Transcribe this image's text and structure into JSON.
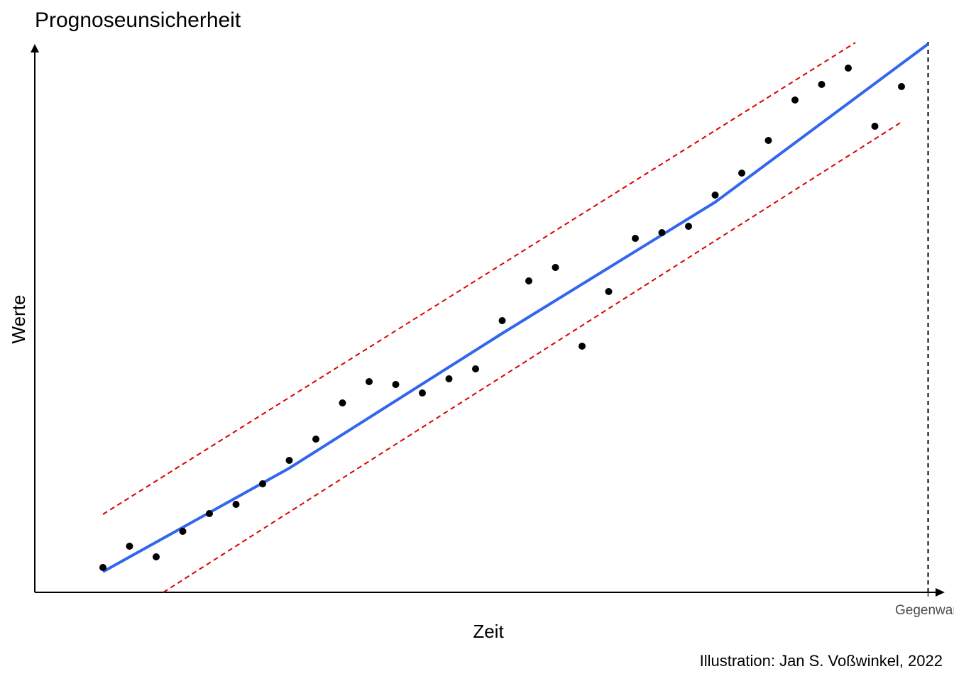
{
  "chart_data": {
    "type": "scatter",
    "title": "Prognoseunsicherheit",
    "x_label": "Zeit",
    "y_label": "Werte",
    "caption": "Illustration: Jan S. Voßwinkel, 2022",
    "xlim": [
      -1.56,
      32.6
    ],
    "ylim": [
      0,
      77
    ],
    "xticks": [
      {
        "value": 32,
        "label": "Gegenwart"
      }
    ],
    "marker_line": {
      "x": 32,
      "color": "#000000"
    },
    "series": [
      {
        "type": "scatter",
        "color": "#000000",
        "x": [
          1,
          2,
          3,
          4,
          5,
          6,
          7,
          8,
          9,
          10,
          11,
          12,
          13,
          14,
          15,
          16,
          17,
          18,
          19,
          20,
          21,
          22,
          23,
          24,
          25,
          26,
          27,
          28,
          29,
          30,
          31
        ],
        "values": [
          3.5,
          6.5,
          5.0,
          8.6,
          11.1,
          12.4,
          15.3,
          18.6,
          21.6,
          26.7,
          29.7,
          29.3,
          28.1,
          30.1,
          31.5,
          38.3,
          43.9,
          45.8,
          34.7,
          42.4,
          49.9,
          50.7,
          51.6,
          56.0,
          59.1,
          63.7,
          69.4,
          71.6,
          73.9,
          65.7,
          71.3
        ]
      },
      {
        "type": "line",
        "color": "#3366ee",
        "dashed": false,
        "x": [
          1,
          8,
          16,
          24,
          32
        ],
        "values": [
          2.9,
          17.5,
          36.5,
          55.0,
          77.3
        ]
      },
      {
        "type": "line",
        "color": "#dd0000",
        "dashed": true,
        "x": [
          1,
          29.27
        ],
        "values": [
          11.0,
          77.5
        ]
      },
      {
        "type": "line",
        "color": "#dd0000",
        "dashed": true,
        "x": [
          3.27,
          31
        ],
        "values": [
          0,
          66.3
        ]
      }
    ]
  }
}
